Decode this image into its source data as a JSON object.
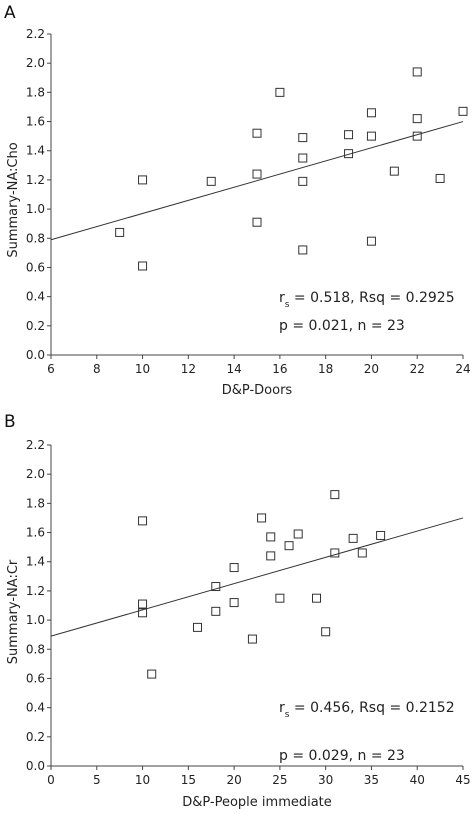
{
  "chart_data": [
    {
      "type": "scatter",
      "panel_label": "A",
      "xlabel": "D&P-Doors",
      "ylabel": "Summary-NA:Cho",
      "xlim": [
        6,
        24
      ],
      "ylim": [
        0.0,
        2.2
      ],
      "xticks": [
        "6",
        "8",
        "10",
        "12",
        "14",
        "16",
        "18",
        "20",
        "22",
        "24"
      ],
      "yticks": [
        "0.0",
        "0.2",
        "0.4",
        "0.6",
        "0.8",
        "1.0",
        "1.2",
        "1.4",
        "1.6",
        "1.8",
        "2.0",
        "2.2"
      ],
      "points": [
        [
          9,
          0.84
        ],
        [
          10,
          1.2
        ],
        [
          10,
          0.61
        ],
        [
          13,
          1.19
        ],
        [
          15,
          1.52
        ],
        [
          15,
          1.24
        ],
        [
          15,
          0.91
        ],
        [
          16,
          1.8
        ],
        [
          17,
          1.49
        ],
        [
          17,
          1.35
        ],
        [
          17,
          1.19
        ],
        [
          17,
          0.72
        ],
        [
          19,
          1.51
        ],
        [
          19,
          1.38
        ],
        [
          20,
          1.66
        ],
        [
          20,
          1.5
        ],
        [
          20,
          0.78
        ],
        [
          21,
          1.26
        ],
        [
          22,
          1.94
        ],
        [
          22,
          1.62
        ],
        [
          22,
          1.5
        ],
        [
          23,
          1.21
        ],
        [
          24,
          1.67
        ]
      ],
      "fit_line": {
        "x": [
          6,
          24
        ],
        "y": [
          0.79,
          1.6
        ]
      },
      "stats": {
        "rs_prefix": "r",
        "rs_sub": "s",
        "rs_text": " = 0.518, Rsq = 0.2925",
        "p_text": "p = 0.021, n = 23"
      }
    },
    {
      "type": "scatter",
      "panel_label": "B",
      "xlabel": "D&P-People immediate",
      "ylabel": "Summary-NA:Cr",
      "xlim": [
        0,
        45
      ],
      "ylim": [
        0.0,
        2.2
      ],
      "xticks": [
        "0",
        "5",
        "10",
        "15",
        "20",
        "25",
        "30",
        "35",
        "40",
        "45"
      ],
      "yticks": [
        "0.0",
        "0.2",
        "0.4",
        "0.6",
        "0.8",
        "1.0",
        "1.2",
        "1.4",
        "1.6",
        "1.8",
        "2.0",
        "2.2"
      ],
      "points": [
        [
          10,
          1.68
        ],
        [
          10,
          1.11
        ],
        [
          10,
          1.05
        ],
        [
          11,
          0.63
        ],
        [
          16,
          0.95
        ],
        [
          18,
          1.23
        ],
        [
          18,
          1.06
        ],
        [
          20,
          1.36
        ],
        [
          20,
          1.12
        ],
        [
          22,
          0.87
        ],
        [
          23,
          1.7
        ],
        [
          24,
          1.57
        ],
        [
          24,
          1.44
        ],
        [
          25,
          1.15
        ],
        [
          26,
          1.51
        ],
        [
          27,
          1.59
        ],
        [
          29,
          1.15
        ],
        [
          30,
          0.92
        ],
        [
          31,
          1.86
        ],
        [
          31,
          1.46
        ],
        [
          33,
          1.56
        ],
        [
          34,
          1.46
        ],
        [
          36,
          1.58
        ]
      ],
      "fit_line": {
        "x": [
          0,
          45
        ],
        "y": [
          0.89,
          1.7
        ]
      },
      "stats": {
        "rs_prefix": "r",
        "rs_sub": "s",
        "rs_text": " = 0.456, Rsq = 0.2152",
        "p_text": "p = 0.029, n = 23"
      }
    }
  ]
}
